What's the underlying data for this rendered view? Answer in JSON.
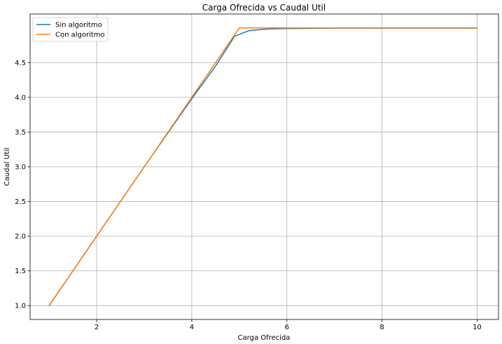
{
  "chart_data": {
    "type": "line",
    "title": "Carga Ofrecida vs Caudal Util",
    "xlabel": "Carga Ofrecida",
    "ylabel": "Caudal Util",
    "xlim": [
      0.6,
      10.45
    ],
    "ylim": [
      0.8,
      5.2
    ],
    "xticks": [
      2,
      4,
      6,
      8,
      10
    ],
    "xtick_labels": [
      "2",
      "4",
      "6",
      "8",
      "10"
    ],
    "yticks": [
      1.0,
      1.5,
      2.0,
      2.5,
      3.0,
      3.5,
      4.0,
      4.5
    ],
    "ytick_labels": [
      "1.0",
      "1.5",
      "2.0",
      "2.5",
      "3.0",
      "3.5",
      "4.0",
      "4.5"
    ],
    "grid": true,
    "legend_position": "top-left",
    "series": [
      {
        "name": "Sin algoritmo",
        "color": "#1f77b4",
        "x": [
          1,
          2,
          3,
          4,
          4.5,
          4.9,
          5.2,
          5.6,
          6,
          7,
          8,
          9,
          10
        ],
        "y": [
          1.0,
          2.0,
          3.0,
          3.98,
          4.45,
          4.88,
          4.96,
          4.985,
          4.99,
          4.995,
          4.995,
          4.995,
          4.995
        ]
      },
      {
        "name": "Con algoritmo",
        "color": "#ff7f0e",
        "x": [
          1,
          2,
          3,
          4,
          5,
          6,
          7,
          8,
          9,
          10
        ],
        "y": [
          1.0,
          2.0,
          3.0,
          4.0,
          5.0,
          5.0,
          5.0,
          5.0,
          5.0,
          5.0
        ]
      }
    ]
  }
}
